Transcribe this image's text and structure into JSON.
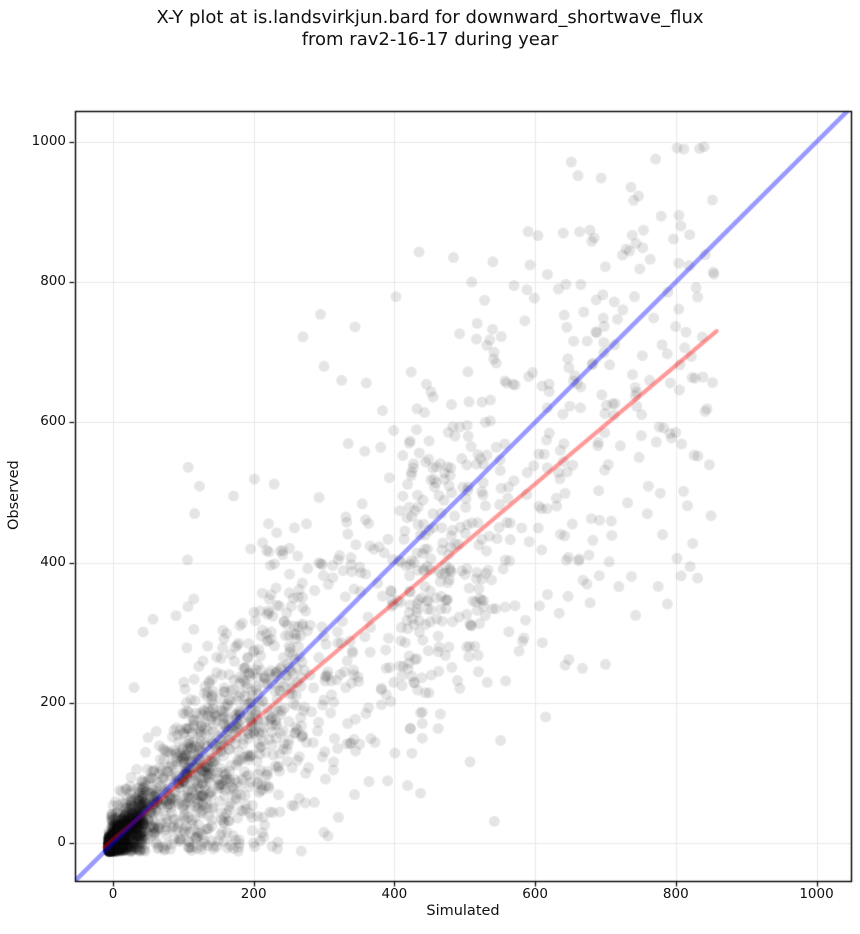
{
  "title": {
    "line1": "X-Y plot at is.landsvirkjun.bard for downward_shortwave_flux",
    "line2": "from rav2-16-17 during year"
  },
  "chart_data": {
    "type": "scatter",
    "title": "X-Y plot at is.landsvirkjun.bard for downward_shortwave_flux\nfrom rav2-16-17 during year",
    "xlabel": "Simulated",
    "ylabel": "Observed",
    "xlim": [
      -54,
      1049
    ],
    "ylim": [
      -54,
      1044
    ],
    "xticks": [
      0,
      200,
      400,
      600,
      800,
      1000
    ],
    "yticks": [
      0,
      200,
      400,
      600,
      800,
      1000
    ],
    "grid": true,
    "legend": "none",
    "n_points_estimate": 2700,
    "point_style": {
      "color": "#000000",
      "alpha": 0.1,
      "radius_px": 5.5
    },
    "colors": {
      "grid": "#e8e8e8",
      "spine": "#000000",
      "one_to_one": "#0000ff",
      "regression": "#ff0000"
    },
    "lines": [
      {
        "name": "one-to-one",
        "color": "#0000ff",
        "alpha": 0.4,
        "width": 4.5,
        "slope": 1,
        "intercept": 0,
        "x_range": [
          -54,
          1049
        ]
      },
      {
        "name": "regression",
        "color": "#ff0000",
        "alpha": 0.4,
        "width": 4.2,
        "slope": 0.845,
        "intercept": 5,
        "x_range": [
          -12,
          858
        ]
      }
    ],
    "point_generation": {
      "seed": 1337,
      "clusters": [
        {
          "name": "origin-blob",
          "n": 820,
          "x_min": -6,
          "x_max": 44,
          "x_pow": 2.3,
          "slope": 0.92,
          "intercept": 1,
          "noise_base": 7,
          "noise_prop": 0.35,
          "y_min": -12,
          "y_max": 1005
        },
        {
          "name": "low-fan",
          "n": 980,
          "x_min": -2,
          "x_max": 270,
          "x_pow": 1.9,
          "slope": 0.9,
          "intercept": 0,
          "noise_base": 22,
          "noise_prop": 0.3,
          "y_min": -12,
          "y_max": 1005
        },
        {
          "name": "mid-fan",
          "n": 520,
          "x_min": 100,
          "x_max": 560,
          "x_pow": 1.35,
          "slope": 0.86,
          "intercept": 0,
          "noise_base": 60,
          "noise_prop": 0.2,
          "y_min": -10,
          "y_max": 1005
        },
        {
          "name": "high-fan",
          "n": 280,
          "x_min": 420,
          "x_max": 862,
          "x_pow": 1.25,
          "slope": 0.88,
          "intercept": -15,
          "noise_base": 95,
          "noise_prop": 0.08,
          "y_min": 0,
          "y_max": 1000
        },
        {
          "name": "wide-outliers",
          "n": 110,
          "x_min": 40,
          "x_max": 760,
          "x_pow": 1.1,
          "slope": 0.9,
          "intercept": 0,
          "noise_base": 185,
          "noise_prop": 0,
          "y_min": 0,
          "y_max": 1005
        }
      ]
    },
    "outlier_points": [
      [
        840,
        993
      ],
      [
        661,
        952
      ],
      [
        852,
        917
      ],
      [
        678,
        874
      ],
      [
        754,
        874
      ],
      [
        738,
        867
      ],
      [
        684,
        863
      ],
      [
        753,
        849
      ],
      [
        590,
        872
      ],
      [
        640,
        870
      ],
      [
        435,
        843
      ],
      [
        484,
        835
      ],
      [
        540,
        829
      ],
      [
        510,
        800
      ],
      [
        570,
        795
      ],
      [
        295,
        754
      ],
      [
        270,
        722
      ],
      [
        300,
        680
      ],
      [
        360,
        656
      ],
      [
        325,
        660
      ],
      [
        610,
        652
      ],
      [
        660,
        655
      ],
      [
        107,
        536
      ],
      [
        123,
        509
      ],
      [
        116,
        470
      ],
      [
        106,
        404
      ],
      [
        850,
        467
      ],
      [
        831,
        378
      ],
      [
        788,
        341
      ],
      [
        775,
        366
      ],
      [
        826,
        553
      ],
      [
        761,
        509
      ],
      [
        778,
        499
      ],
      [
        30,
        222
      ],
      [
        615,
        180
      ],
      [
        700,
        255
      ],
      [
        648,
        262
      ]
    ]
  }
}
